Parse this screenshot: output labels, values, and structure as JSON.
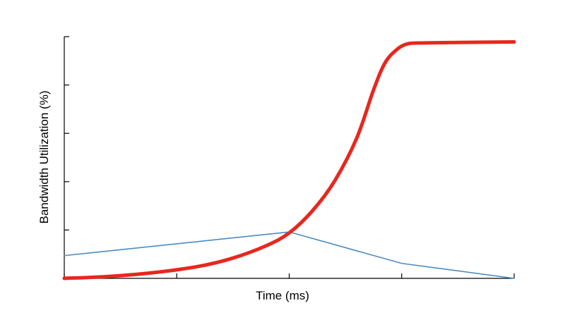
{
  "chart_data": {
    "type": "line",
    "title": "",
    "xlabel": "Time (ms)",
    "ylabel": "Bandwidth Utilization (%)",
    "xlim": [
      0,
      4
    ],
    "ylim": [
      0,
      5
    ],
    "xticks": [
      0,
      1,
      2,
      3,
      4
    ],
    "yticks": [
      0,
      1,
      2,
      3,
      4,
      5
    ],
    "grid": false,
    "legend": "none",
    "series": [
      {
        "color": "#e8271e",
        "x": [
          0,
          0.4,
          0.8,
          1.2,
          1.5,
          1.8,
          2.0,
          2.2,
          2.4,
          2.6,
          2.75,
          2.85,
          2.95,
          3.05,
          3.2,
          3.5,
          4.0
        ],
        "y": [
          0.0,
          0.04,
          0.12,
          0.25,
          0.42,
          0.68,
          0.94,
          1.38,
          2.0,
          2.9,
          3.9,
          4.45,
          4.72,
          4.85,
          4.87,
          4.88,
          4.89
        ]
      },
      {
        "color": "#4a8cc2",
        "x": [
          0,
          2.0,
          3.0,
          4.0
        ],
        "y": [
          0.47,
          0.96,
          0.31,
          0.0
        ]
      }
    ]
  }
}
